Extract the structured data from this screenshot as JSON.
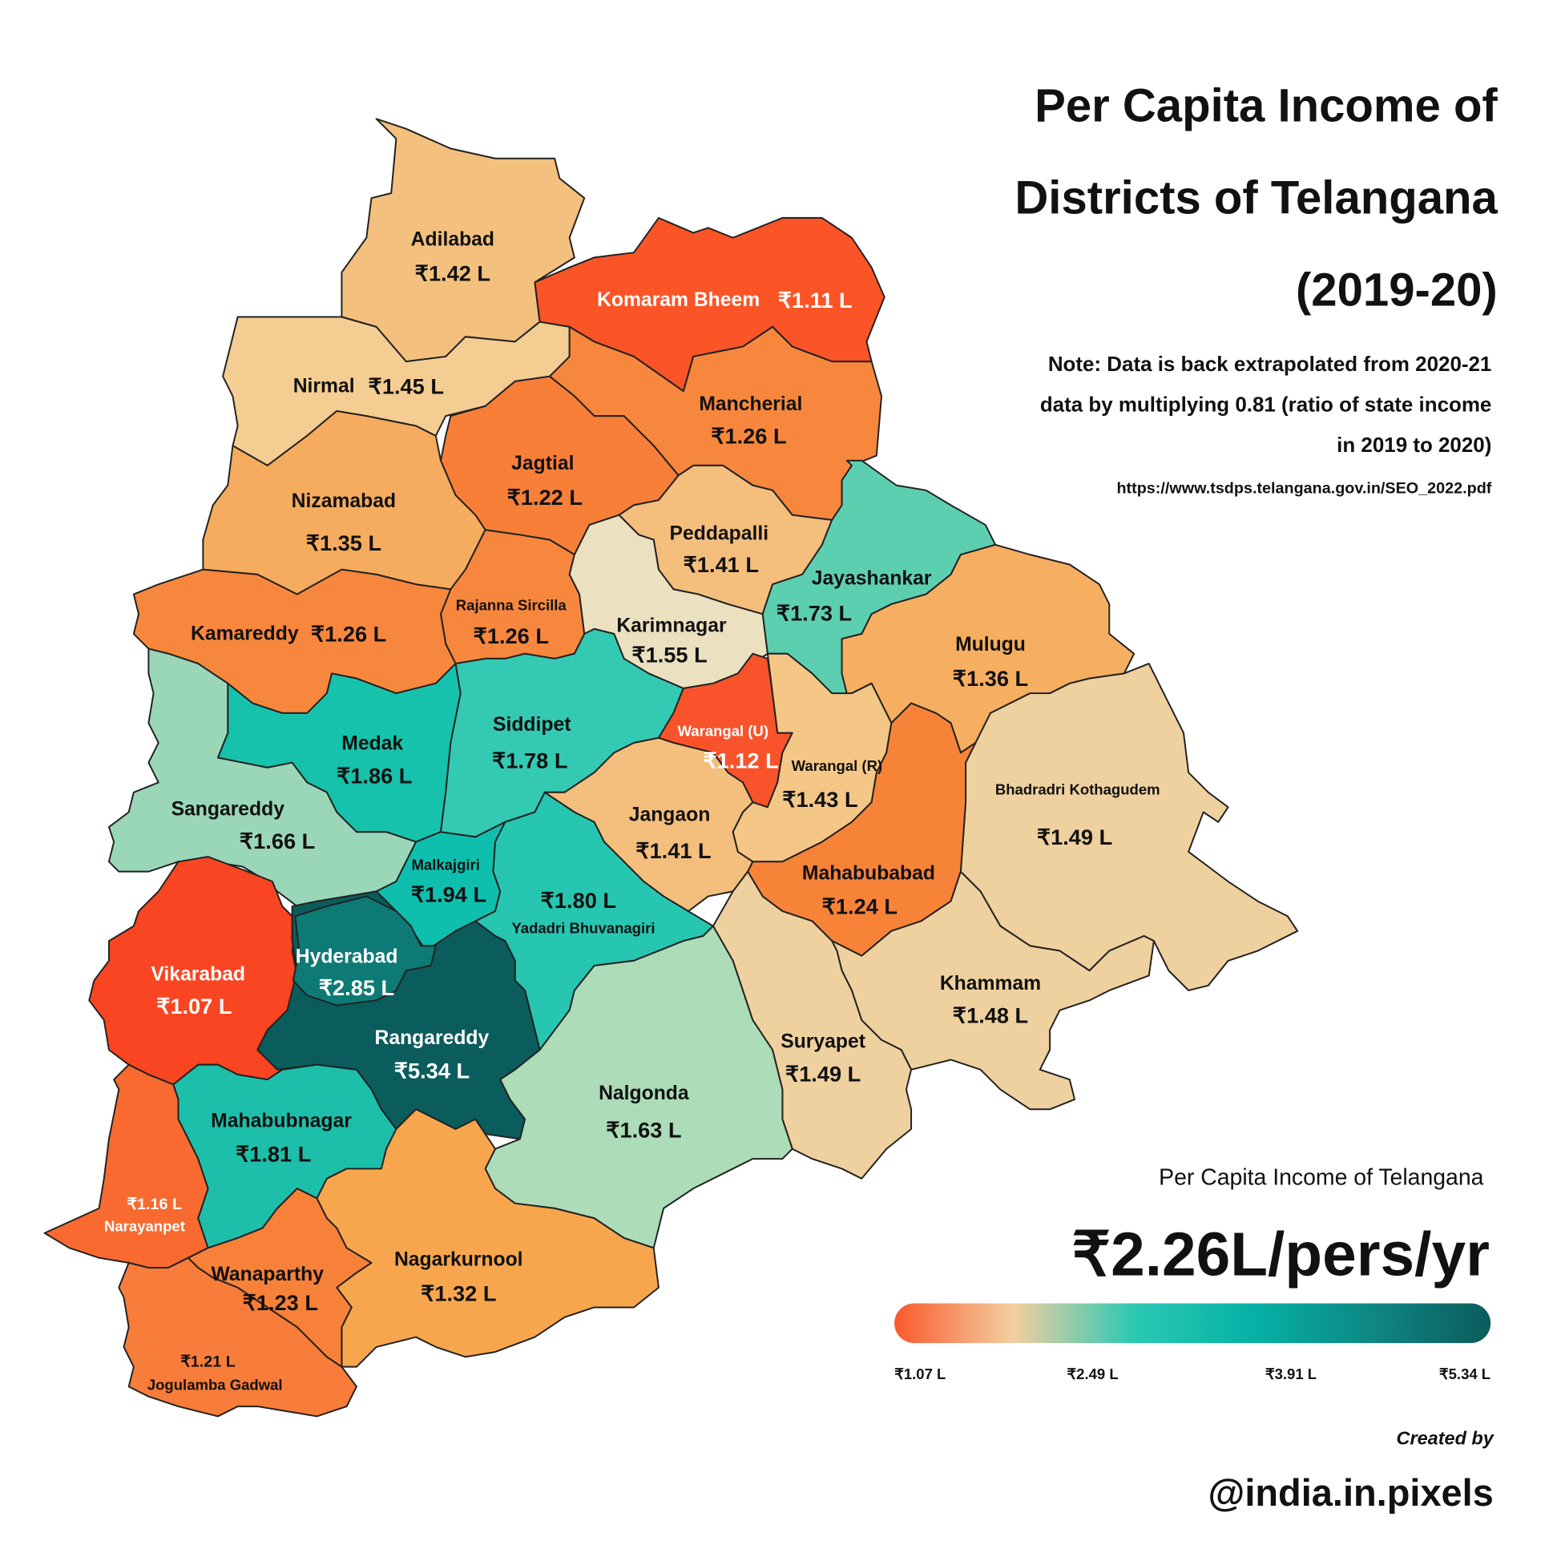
{
  "chart_data": {
    "type": "choropleth",
    "title": [
      "Per Capita Income of",
      "Districts of Telangana",
      "(2019-20)"
    ],
    "note": [
      "Note: Data is back extrapolated from 2020-21",
      "data by multiplying 0.81 (ratio of state income",
      "in 2019 to 2020)"
    ],
    "source": "https://www.tsdps.telangana.gov.in/SEO_2022.pdf",
    "regions": [
      {
        "name": "Adilabad",
        "value": 1.42,
        "value_label": "₹1.42 L",
        "color": "#f3c07e"
      },
      {
        "name": "Komaram Bheem",
        "value": 1.11,
        "value_label": "₹1.11 L",
        "color": "#fa5427"
      },
      {
        "name": "Nirmal",
        "value": 1.45,
        "value_label": "₹1.45 L",
        "color": "#f4cd93"
      },
      {
        "name": "Mancherial",
        "value": 1.26,
        "value_label": "₹1.26 L",
        "color": "#f8873e"
      },
      {
        "name": "Jagtial",
        "value": 1.22,
        "value_label": "₹1.22 L",
        "color": "#f77f38"
      },
      {
        "name": "Nizamabad",
        "value": 1.35,
        "value_label": "₹1.35 L",
        "color": "#f6ac5e"
      },
      {
        "name": "Peddapalli",
        "value": 1.41,
        "value_label": "₹1.41 L",
        "color": "#f4be7d"
      },
      {
        "name": "Jayashankar",
        "value": 1.73,
        "value_label": "₹1.73 L",
        "color": "#5dcfb1"
      },
      {
        "name": "Rajanna Sircilla",
        "value": 1.26,
        "value_label": "₹1.26 L",
        "color": "#f8873e"
      },
      {
        "name": "Kamareddy",
        "value": 1.26,
        "value_label": "₹1.26 L",
        "color": "#f8873e"
      },
      {
        "name": "Karimnagar",
        "value": 1.55,
        "value_label": "₹1.55 L",
        "color": "#ebe0c0"
      },
      {
        "name": "Mulugu",
        "value": 1.36,
        "value_label": "₹1.36 L",
        "color": "#f6ae60"
      },
      {
        "name": "Medak",
        "value": 1.86,
        "value_label": "₹1.86 L",
        "color": "#17c2ac"
      },
      {
        "name": "Siddipet",
        "value": 1.78,
        "value_label": "₹1.78 L",
        "color": "#34c9b3"
      },
      {
        "name": "Warangal (U)",
        "value": 1.12,
        "value_label": "₹1.12 L",
        "color": "#f8532a"
      },
      {
        "name": "Warangal (R)",
        "value": 1.43,
        "value_label": "₹1.43 L",
        "color": "#f4c787"
      },
      {
        "name": "Sangareddy",
        "value": 1.66,
        "value_label": "₹1.66 L",
        "color": "#9ad7b8"
      },
      {
        "name": "Bhadradri Kothagudem",
        "value": 1.49,
        "value_label": "₹1.49 L",
        "color": "#efd19f"
      },
      {
        "name": "Jangaon",
        "value": 1.41,
        "value_label": "₹1.41 L",
        "color": "#f4be7d"
      },
      {
        "name": "Mahabubabad",
        "value": 1.24,
        "value_label": "₹1.24 L",
        "color": "#f78339"
      },
      {
        "name": "Malkajgiri",
        "value": 1.94,
        "value_label": "₹1.94 L",
        "color": "#0fbfae"
      },
      {
        "name": "Yadadri Bhuvanagiri",
        "value": 1.8,
        "value_label": "₹1.80 L",
        "color": "#26c6b1"
      },
      {
        "name": "Hyderabad",
        "value": 2.85,
        "value_label": "₹2.85 L",
        "color": "#0e7a76"
      },
      {
        "name": "Vikarabad",
        "value": 1.07,
        "value_label": "₹1.07 L",
        "color": "#f94522"
      },
      {
        "name": "Khammam",
        "value": 1.48,
        "value_label": "₹1.48 L",
        "color": "#efd19f"
      },
      {
        "name": "Rangareddy",
        "value": 5.34,
        "value_label": "₹5.34 L",
        "color": "#0b5c5c"
      },
      {
        "name": "Suryapet",
        "value": 1.49,
        "value_label": "₹1.49 L",
        "color": "#efd19f"
      },
      {
        "name": "Nalgonda",
        "value": 1.63,
        "value_label": "₹1.63 L",
        "color": "#acdcb8"
      },
      {
        "name": "Mahabubnagar",
        "value": 1.81,
        "value_label": "₹1.81 L",
        "color": "#1ebfaa"
      },
      {
        "name": "Narayanpet",
        "value": 1.16,
        "value_label": "₹1.16 L",
        "color": "#f86a30"
      },
      {
        "name": "Nagarkurnool",
        "value": 1.32,
        "value_label": "₹1.32 L",
        "color": "#f8a64e"
      },
      {
        "name": "Wanaparthy",
        "value": 1.23,
        "value_label": "₹1.23 L",
        "color": "#f78139"
      },
      {
        "name": "Jogulamba Gadwal",
        "value": 1.21,
        "value_label": "₹1.21 L",
        "color": "#f87c3a"
      }
    ],
    "state_label": "Per Capita Income of Telangana",
    "state_value": "₹2.26L/pers/yr",
    "colorbar": {
      "clim": [
        1.07,
        5.34
      ],
      "colors": [
        "#f95a2c",
        "#f3cfa0",
        "#2cc9b3",
        "#05b2a6",
        "#0e8785",
        "#0b5c5c"
      ],
      "ticks": [
        {
          "value": 1.07,
          "label": "₹1.07 L"
        },
        {
          "value": 2.49,
          "label": "₹2.49 L"
        },
        {
          "value": 3.91,
          "label": "₹3.91 L"
        },
        {
          "value": 5.34,
          "label": "₹5.34 L"
        }
      ]
    },
    "credit_prefix": "Created by",
    "credit": "@india.in.pixels"
  }
}
